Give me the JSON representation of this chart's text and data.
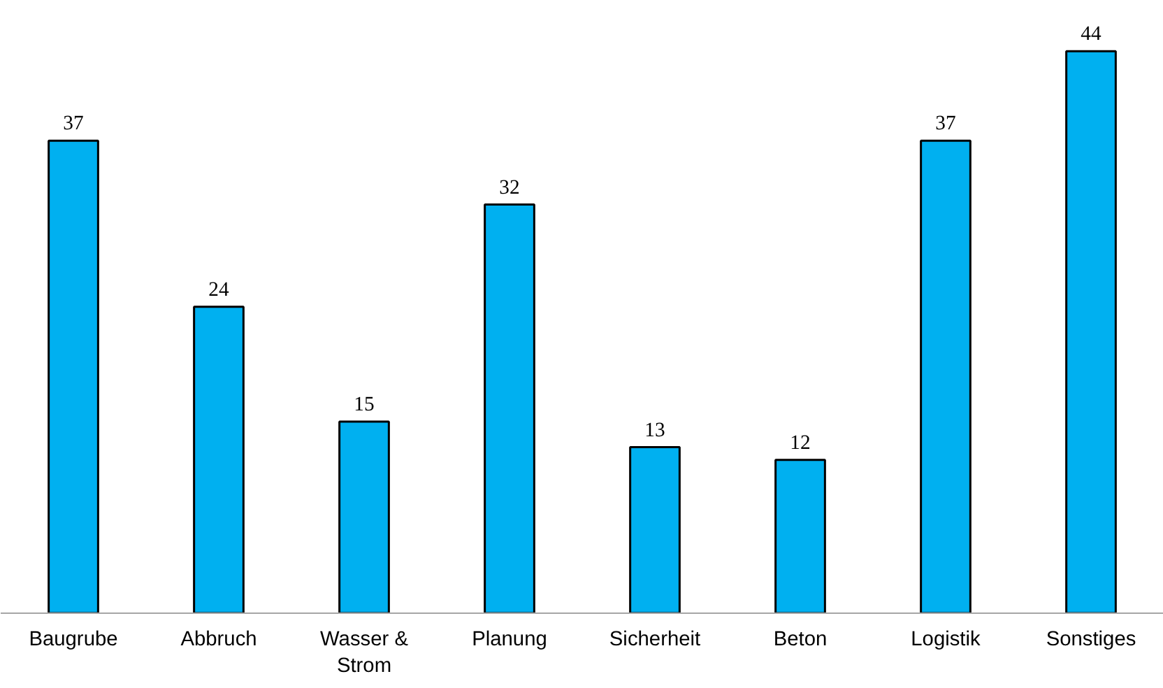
{
  "chart_data": {
    "type": "bar",
    "categories": [
      "Baugrube",
      "Abbruch",
      "Wasser & Strom",
      "Planung",
      "Sicherheit",
      "Beton",
      "Logistik",
      "Sonstiges"
    ],
    "values": [
      37,
      24,
      15,
      32,
      13,
      12,
      37,
      44
    ],
    "color": "#00b0f0",
    "data_labels": true
  }
}
